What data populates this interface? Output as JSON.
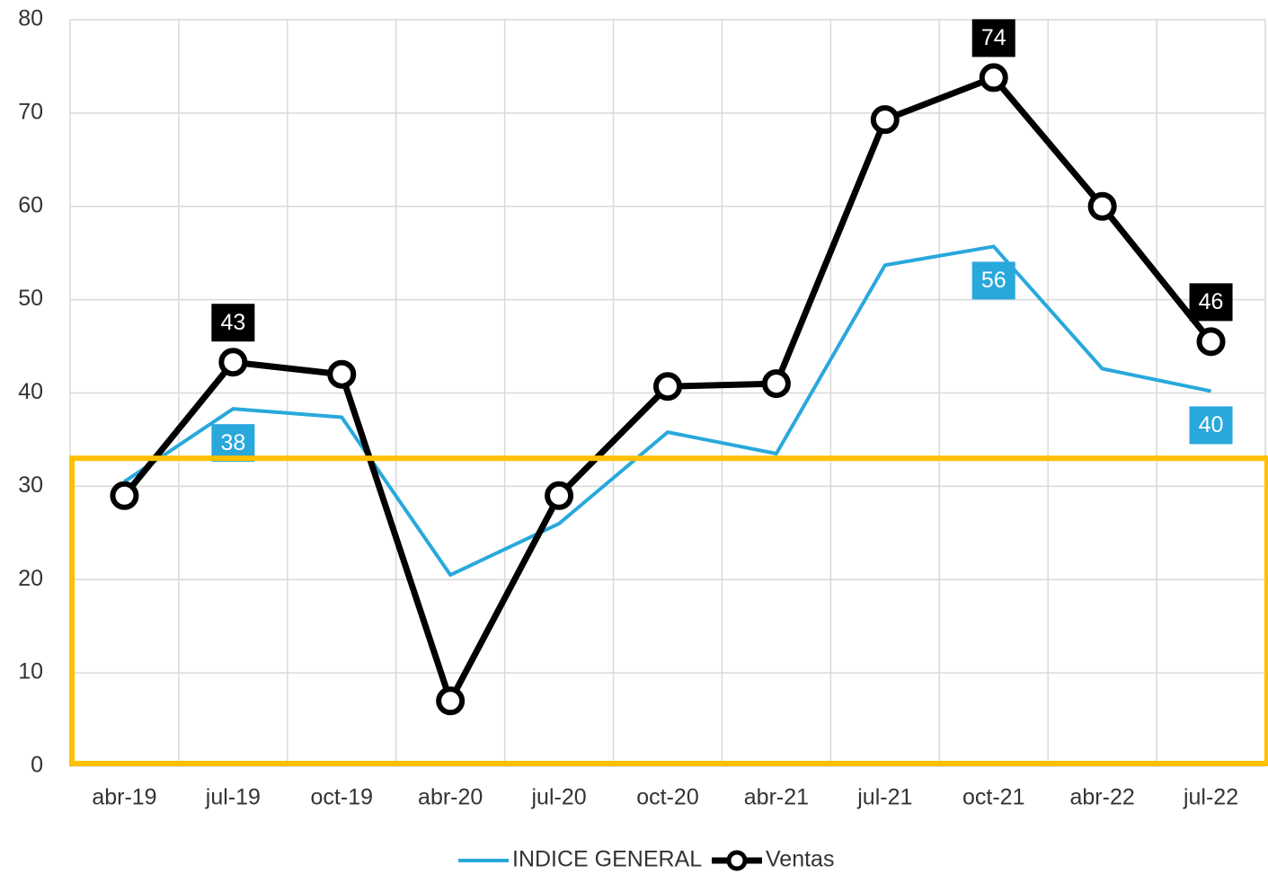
{
  "chart_data": {
    "type": "line",
    "categories": [
      "abr-19",
      "jul-19",
      "oct-19",
      "abr-20",
      "jul-20",
      "oct-20",
      "abr-21",
      "jul-21",
      "oct-21",
      "abr-22",
      "jul-22"
    ],
    "series": [
      {
        "name": "INDICE GENERAL",
        "color": "#29a8dc",
        "marker": false,
        "values": [
          30.5,
          38.3,
          37.4,
          20.5,
          26,
          35.8,
          33.5,
          53.7,
          55.7,
          42.6,
          40.2
        ],
        "value_labels": [
          null,
          "38",
          null,
          null,
          null,
          null,
          null,
          null,
          "56",
          null,
          "40"
        ]
      },
      {
        "name": "Ventas",
        "color": "#000000",
        "marker": true,
        "values": [
          29,
          43.3,
          42,
          7,
          29,
          40.7,
          41,
          69.3,
          73.8,
          60,
          45.5
        ],
        "value_labels": [
          null,
          "43",
          null,
          null,
          null,
          null,
          null,
          null,
          "74",
          null,
          "46"
        ]
      }
    ],
    "ylim": [
      0,
      80
    ],
    "yticks": [
      0,
      10,
      20,
      30,
      40,
      50,
      60,
      70,
      80
    ],
    "grid": true,
    "highlight_band": {
      "ylim": [
        0,
        33
      ],
      "color": "#ffc000"
    },
    "legend": "bottom"
  }
}
